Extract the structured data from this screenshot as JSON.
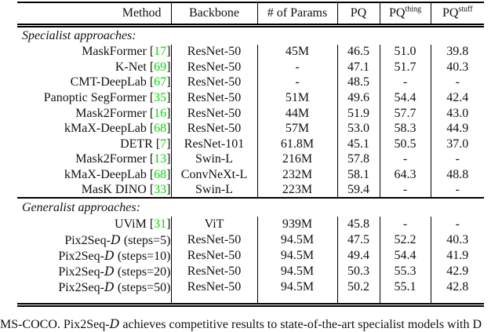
{
  "colors": {
    "citation_green": "#00dd00",
    "text": "#111111",
    "rule": "#000000"
  },
  "table": {
    "headers": [
      {
        "label": "Method"
      },
      {
        "label": "Backbone"
      },
      {
        "label": "# of Params"
      },
      {
        "label": "PQ"
      },
      {
        "label": "PQ",
        "sup": "thing"
      },
      {
        "label": "PQ",
        "sup": "stuff"
      }
    ],
    "rows": [
      {
        "section": "Specialist approaches:"
      },
      {
        "method": [
          {
            "t": "MaskFormer ["
          },
          {
            "t": "17",
            "s": "cite"
          },
          {
            "t": "]"
          }
        ],
        "backbone": "ResNet-50",
        "params": "45M",
        "pq": "46.5",
        "pq_thing": "51.0",
        "pq_stuff": "39.8"
      },
      {
        "method": [
          {
            "t": "K-Net ["
          },
          {
            "t": "69",
            "s": "cite"
          },
          {
            "t": "]"
          }
        ],
        "backbone": "ResNet-50",
        "params": "-",
        "pq": "47.1",
        "pq_thing": "51.7",
        "pq_stuff": "40.3"
      },
      {
        "method": [
          {
            "t": "CMT-DeepLab ["
          },
          {
            "t": "67",
            "s": "cite"
          },
          {
            "t": "]"
          }
        ],
        "backbone": "ResNet-50",
        "params": "-",
        "pq": "48.5",
        "pq_thing": "-",
        "pq_stuff": "-"
      },
      {
        "method": [
          {
            "t": "Panoptic SegFormer ["
          },
          {
            "t": "35",
            "s": "cite"
          },
          {
            "t": "]"
          }
        ],
        "backbone": "ResNet-50",
        "params": "51M",
        "pq": "49.6",
        "pq_thing": "54.4",
        "pq_stuff": "42.4"
      },
      {
        "method": [
          {
            "t": "Mask2Former ["
          },
          {
            "t": "16",
            "s": "cite"
          },
          {
            "t": "]"
          }
        ],
        "backbone": "ResNet-50",
        "params": "44M",
        "pq": "51.9",
        "pq_thing": "57.7",
        "pq_stuff": "43.0"
      },
      {
        "method": [
          {
            "t": "kMaX-DeepLab ["
          },
          {
            "t": "68",
            "s": "cite"
          },
          {
            "t": "]"
          }
        ],
        "backbone": "ResNet-50",
        "params": "57M",
        "pq": "53.0",
        "pq_thing": "58.3",
        "pq_stuff": "44.9"
      },
      {
        "method": [
          {
            "t": "DETR ["
          },
          {
            "t": "7",
            "s": "cite"
          },
          {
            "t": "]"
          }
        ],
        "backbone": "ResNet-101",
        "params": "61.8M",
        "pq": "45.1",
        "pq_thing": "50.5",
        "pq_stuff": "37.0"
      },
      {
        "method": [
          {
            "t": "Mask2Former ["
          },
          {
            "t": "13",
            "s": "cite"
          },
          {
            "t": "]"
          }
        ],
        "backbone": "Swin-L",
        "params": "216M",
        "pq": "57.8",
        "pq_thing": "-",
        "pq_stuff": "-"
      },
      {
        "method": [
          {
            "t": "kMaX-DeepLab ["
          },
          {
            "t": "68",
            "s": "cite"
          },
          {
            "t": "]"
          }
        ],
        "backbone": "ConvNeXt-L",
        "params": "232M",
        "pq": "58.1",
        "pq_thing": "64.3",
        "pq_stuff": "48.8"
      },
      {
        "method": [
          {
            "t": "MasK DINO ["
          },
          {
            "t": "33",
            "s": "cite"
          },
          {
            "t": "]"
          }
        ],
        "backbone": "Swin-L",
        "params": "223M",
        "pq": "59.4",
        "pq_thing": "-",
        "pq_stuff": "-"
      },
      {
        "section": "Generalist approaches:",
        "rule_above": true
      },
      {
        "method": [
          {
            "t": "UViM ["
          },
          {
            "t": "31",
            "s": "cite"
          },
          {
            "t": "]"
          }
        ],
        "backbone": "ViT",
        "params": "939M",
        "pq": "45.8",
        "pq_thing": "-",
        "pq_stuff": "-"
      },
      {
        "method": [
          {
            "t": "Pix2Seq-"
          },
          {
            "t": "D",
            "s": "script"
          },
          {
            "t": " (steps=5)"
          }
        ],
        "backbone": "ResNet-50",
        "params": "94.5M",
        "pq": "47.5",
        "pq_thing": "52.2",
        "pq_stuff": "40.3"
      },
      {
        "method": [
          {
            "t": "Pix2Seq-"
          },
          {
            "t": "D",
            "s": "script"
          },
          {
            "t": " (steps=10)"
          }
        ],
        "backbone": "ResNet-50",
        "params": "94.5M",
        "pq": "49.4",
        "pq_thing": "54.4",
        "pq_stuff": "41.9"
      },
      {
        "method": [
          {
            "t": "Pix2Seq-"
          },
          {
            "t": "D",
            "s": "script"
          },
          {
            "t": " (steps=20)"
          }
        ],
        "backbone": "ResNet-50",
        "params": "94.5M",
        "pq": "50.3",
        "pq_thing": "55.3",
        "pq_stuff": "42.9"
      },
      {
        "method": [
          {
            "t": "Pix2Seq-"
          },
          {
            "t": "D",
            "s": "script"
          },
          {
            "t": " (steps=50)"
          }
        ],
        "backbone": "ResNet-50",
        "params": "94.5M",
        "pq": "50.2",
        "pq_thing": "55.1",
        "pq_stuff": "42.8"
      },
      {
        "spacer": true
      }
    ]
  },
  "caption_parts": [
    {
      "t": "MS-COCO. Pix2Seq-"
    },
    {
      "t": "D",
      "s": "script"
    },
    {
      "t": " achieves competitive results to state-of-the-art specialist models with D"
    }
  ]
}
